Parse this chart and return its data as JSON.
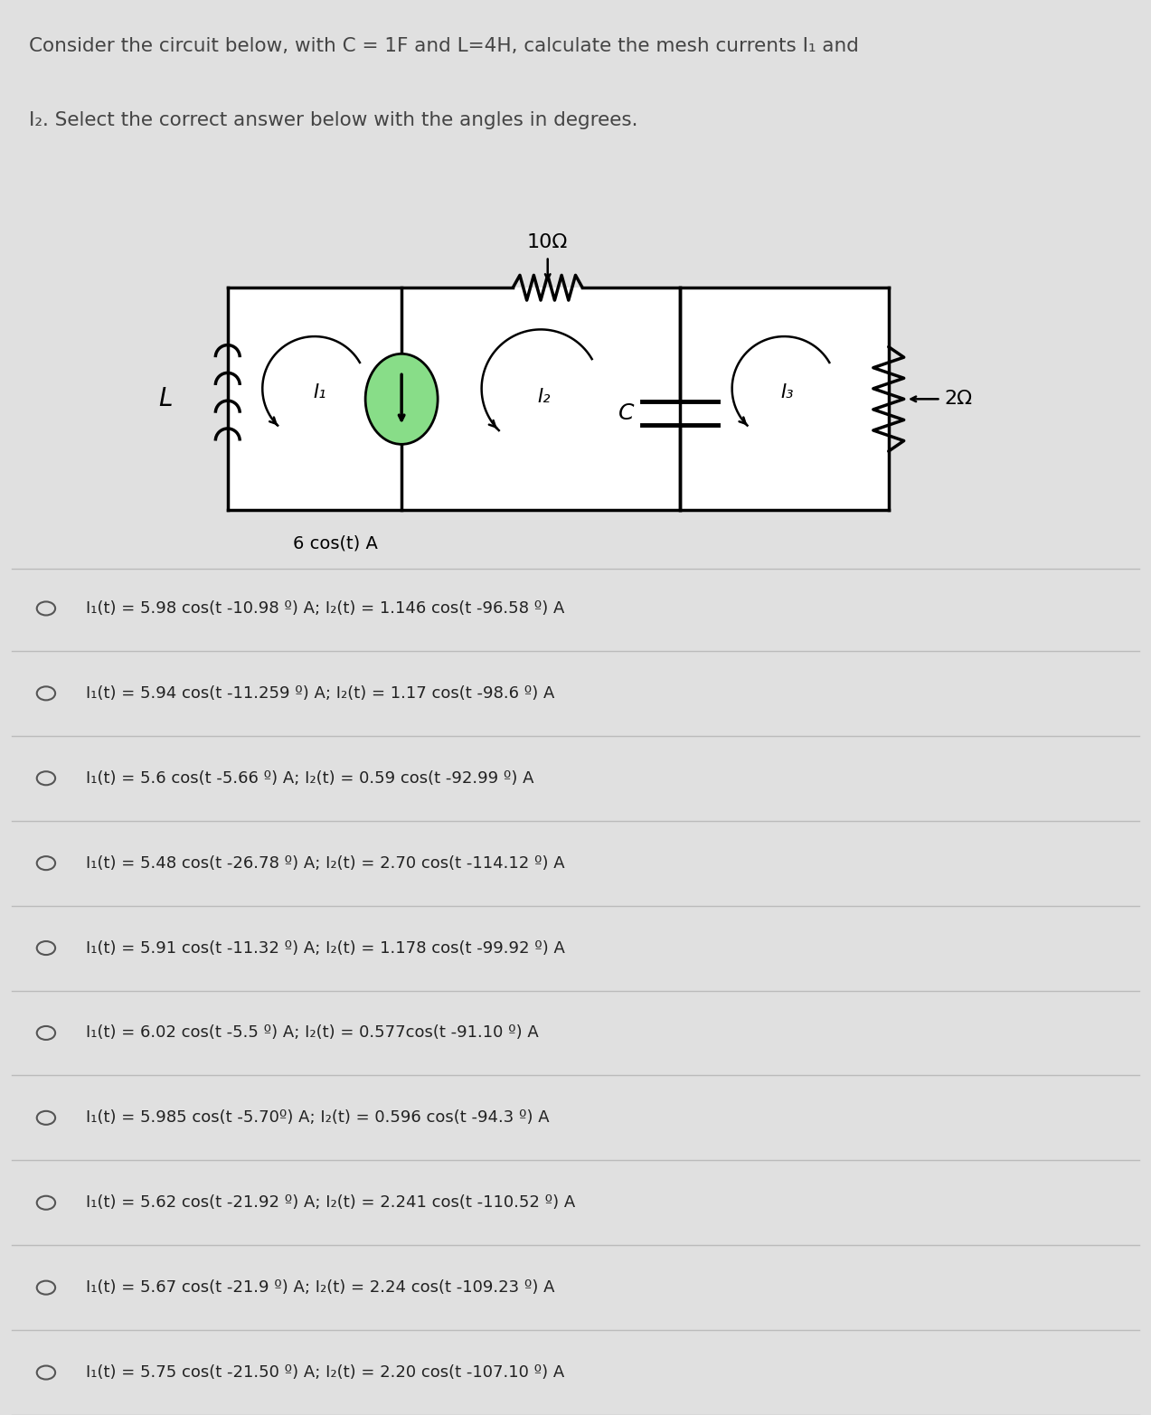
{
  "title_line1": "Consider the circuit below, with C = 1F and L=4H, calculate the mesh currents I₁ and",
  "title_line2": "I₂. Select the correct answer below with the angles in degrees.",
  "background_color": "#e0e0e0",
  "circuit_bg": "#ffffff",
  "options": [
    "I₁(t) = 5.98 cos(t -10.98 º) A; I₂(t) = 1.146 cos(t -96.58 º) A",
    "I₁(t) = 5.94 cos(t -11.259 º) A; I₂(t) = 1.17 cos(t -98.6 º) A",
    "I₁(t) = 5.6 cos(t -5.66 º) A; I₂(t) = 0.59 cos(t -92.99 º) A",
    "I₁(t) = 5.48 cos(t -26.78 º) A; I₂(t) = 2.70 cos(t -114.12 º) A",
    "I₁(t) = 5.91 cos(t -11.32 º) A; I₂(t) = 1.178 cos(t -99.92 º) A",
    "I₁(t) = 6.02 cos(t -5.5 º) A; I₂(t) = 0.577cos(t -91.10 º) A",
    "I₁(t) = 5.985 cos(t -5.70º) A; I₂(t) = 0.596 cos(t -94.3 º) A",
    "I₁(t) = 5.62 cos(t -21.92 º) A; I₂(t) = 2.241 cos(t -110.52 º) A",
    "I₁(t) = 5.67 cos(t -21.9 º) A; I₂(t) = 2.24 cos(t -109.23 º) A",
    "I₁(t) = 5.75 cos(t -21.50 º) A; I₂(t) = 2.20 cos(t -107.10 º) A"
  ],
  "label_10ohm": "10Ω",
  "label_2ohm": "2Ω",
  "label_L": "L",
  "label_C": "C",
  "label_I1": "I₁",
  "label_I2": "I₂",
  "label_I3": "I₃",
  "label_source": "6 cos(t) A"
}
